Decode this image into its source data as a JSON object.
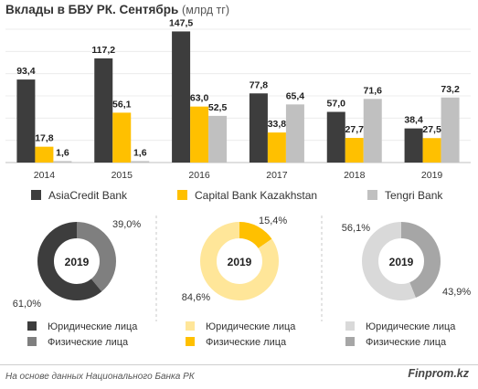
{
  "title": "Вклады в БВУ РК. Сентябрь",
  "unit": "(млрд тг)",
  "footer": {
    "source": "На основе данных Национального  Банка РК",
    "brand": "Finprom.kz"
  },
  "colors": {
    "asiacredit": "#3d3d3d",
    "capital": "#ffc000",
    "tengri": "#c0c0c0"
  },
  "chart_data": [
    {
      "type": "bar",
      "title": "Вклады в БВУ РК. Сентябрь (млрд тг)",
      "categories": [
        "2014",
        "2015",
        "2016",
        "2017",
        "2018",
        "2019"
      ],
      "series": [
        {
          "name": "AsiaCredit Bank",
          "color": "#3d3d3d",
          "values": [
            93.4,
            117.2,
            147.5,
            77.8,
            57.0,
            38.4
          ],
          "labels": [
            "93,4",
            "117,2",
            "147,5",
            "77,8",
            "57,0",
            "38,4"
          ]
        },
        {
          "name": "Capital Bank Kazakhstan",
          "color": "#ffc000",
          "values": [
            17.8,
            56.1,
            63.0,
            33.8,
            27.7,
            27.5
          ],
          "labels": [
            "17,8",
            "56,1",
            "63,0",
            "33,8",
            "27,7",
            "27,5"
          ]
        },
        {
          "name": "Tengri Bank",
          "color": "#c0c0c0",
          "values": [
            1.6,
            1.6,
            52.5,
            65.4,
            71.6,
            73.2
          ],
          "labels": [
            "1,6",
            "1,6",
            "52,5",
            "65,4",
            "71,6",
            "73,2"
          ]
        }
      ],
      "ylim": [
        0,
        150
      ],
      "grid": true,
      "legend": "bottom"
    },
    {
      "type": "pie",
      "title": "2019",
      "bank": "AsiaCredit Bank",
      "slices": [
        {
          "name": "Юридические лица",
          "value": 61.0,
          "label": "61,0%",
          "color": "#3d3d3d"
        },
        {
          "name": "Физические лица",
          "value": 39.0,
          "label": "39,0%",
          "color": "#7f7f7f"
        }
      ]
    },
    {
      "type": "pie",
      "title": "2019",
      "bank": "Capital Bank Kazakhstan",
      "slices": [
        {
          "name": "Юридические лица",
          "value": 84.6,
          "label": "84,6%",
          "color": "#ffe699"
        },
        {
          "name": "Физические лица",
          "value": 15.4,
          "label": "15,4%",
          "color": "#ffc000"
        }
      ]
    },
    {
      "type": "pie",
      "title": "2019",
      "bank": "Tengri Bank",
      "slices": [
        {
          "name": "Юридические лица",
          "value": 56.1,
          "label": "56,1%",
          "color": "#d9d9d9"
        },
        {
          "name": "Физические лица",
          "value": 43.9,
          "label": "43,9%",
          "color": "#a6a6a6"
        }
      ]
    }
  ]
}
